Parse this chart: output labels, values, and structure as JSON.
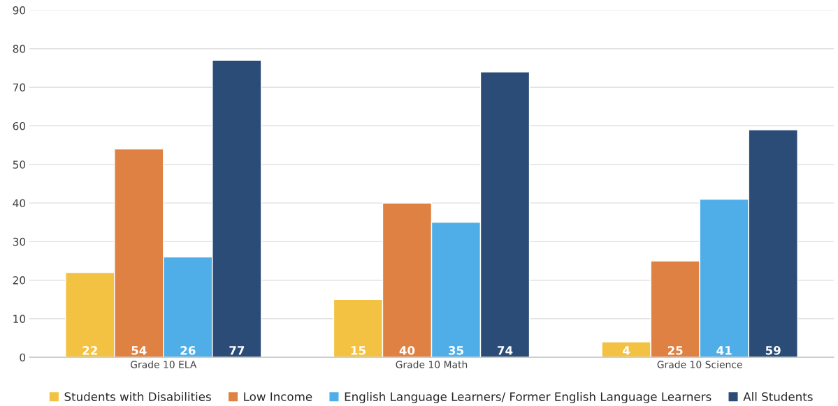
{
  "chart_data": {
    "type": "bar",
    "categories": [
      "Grade 10 ELA",
      "Grade 10 Math",
      "Grade 10 Science"
    ],
    "series": [
      {
        "name": "Students with Disabilities",
        "color": "#f4c242",
        "values": [
          22,
          15,
          4
        ]
      },
      {
        "name": "Low Income",
        "color": "#df8142",
        "values": [
          54,
          40,
          25
        ]
      },
      {
        "name": "English Language Learners/ Former English Language Learners",
        "color": "#4faee8",
        "values": [
          26,
          35,
          41
        ]
      },
      {
        "name": "All Students",
        "color": "#2b4c76",
        "values": [
          77,
          74,
          59
        ]
      }
    ],
    "ylim": [
      0,
      90
    ],
    "yticks": [
      0,
      10,
      20,
      30,
      40,
      50,
      60,
      70,
      80,
      90
    ],
    "grid": "y",
    "legend": "bottom",
    "data_labels": true
  }
}
